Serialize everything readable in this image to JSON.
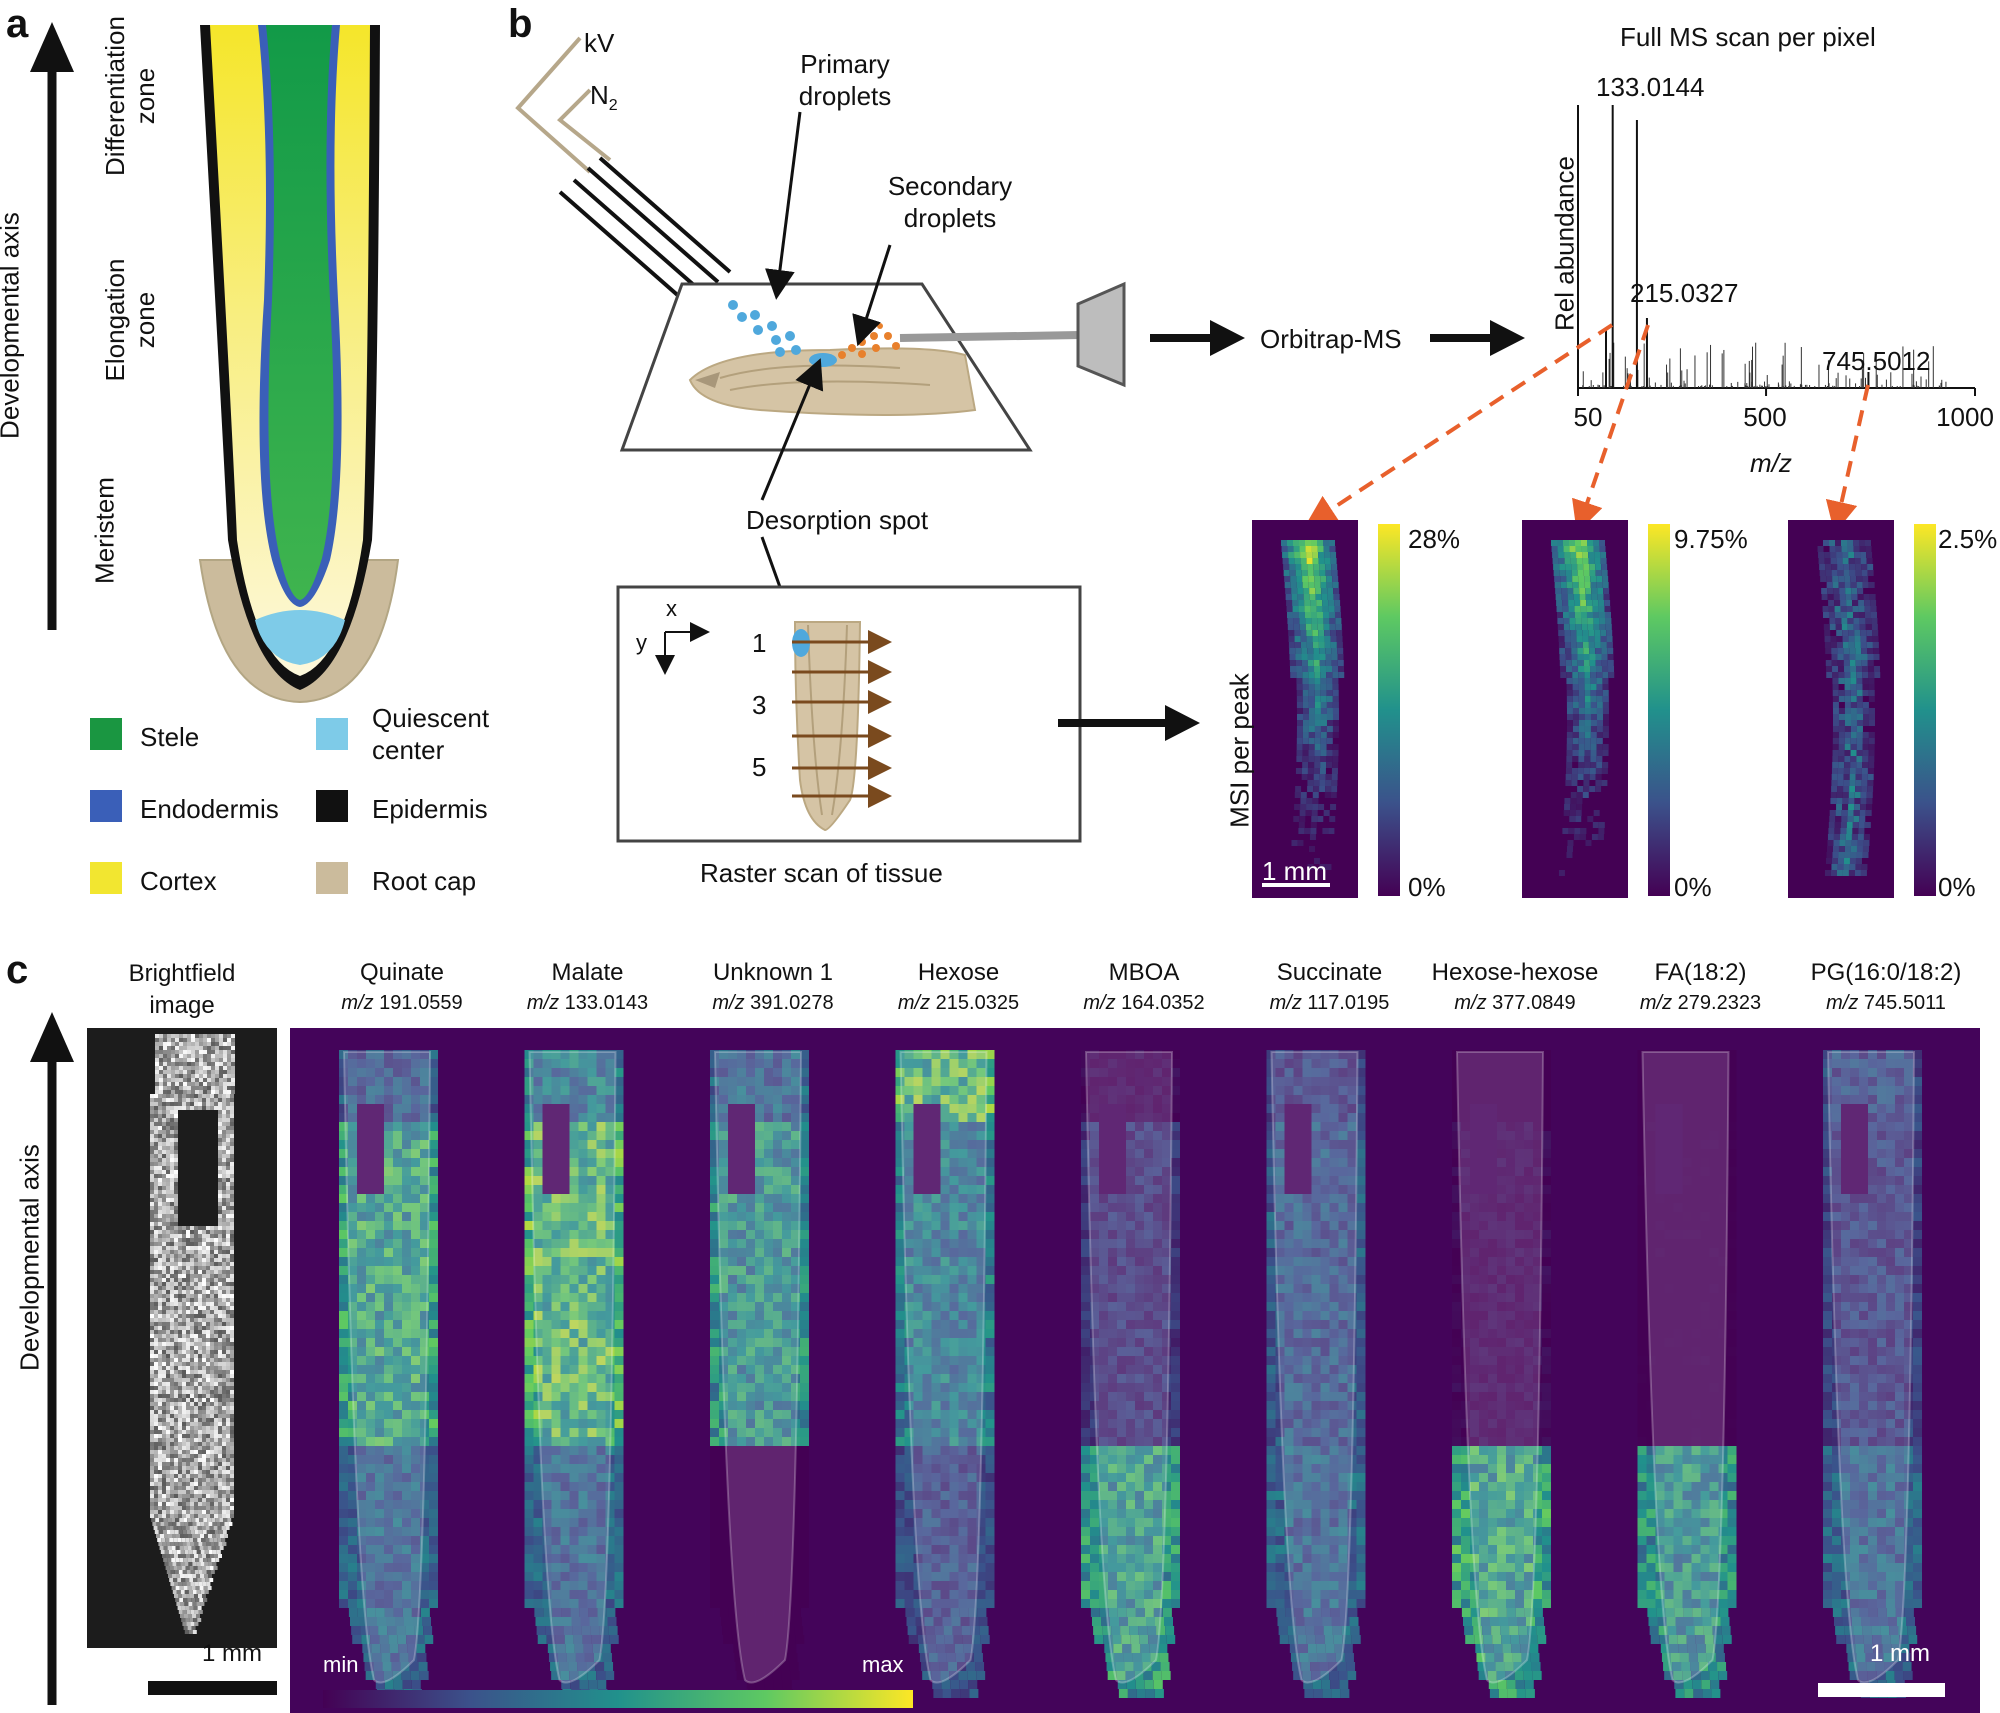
{
  "panel_a": {
    "letter": "a",
    "axis_label": "Developmental axis",
    "zones": [
      "Differentiation zone",
      "Elongation zone",
      "Meristem"
    ],
    "zone_lines": [
      [
        "Differentiation",
        "zone"
      ],
      [
        "Elongation",
        "zone"
      ],
      [
        "Meristem"
      ]
    ],
    "legend": [
      {
        "label": "Stele",
        "color": "#1a9641"
      },
      {
        "label": "Endodermis",
        "color": "#3a5fb8"
      },
      {
        "label": "Cortex",
        "color": "#f2e630"
      },
      {
        "label": "Quiescent center",
        "lines": [
          "Quiescent",
          "center"
        ],
        "color": "#7ecbe8"
      },
      {
        "label": "Epidermis",
        "color": "#111111"
      },
      {
        "label": "Root cap",
        "color": "#cbbb9c"
      }
    ]
  },
  "panel_b": {
    "letter": "b",
    "kv_label": "kV",
    "n2_label": "N",
    "n2_sub": "2",
    "primary_droplets": [
      "Primary",
      "droplets"
    ],
    "secondary_droplets": [
      "Secondary",
      "droplets"
    ],
    "desorption_spot": "Desorption spot",
    "raster_label": "Raster scan of tissue",
    "raster_axes": {
      "x": "x",
      "y": "y"
    },
    "raster_rows": [
      "1",
      "3",
      "5"
    ],
    "orbitrap": "Orbitrap-MS",
    "spectrum_title": "Full MS scan per pixel",
    "spectrum_ylabel": "Rel abundance",
    "spectrum_xlabel": "m/z",
    "spectrum_ticks": [
      "50",
      "500",
      "1000"
    ],
    "spectrum_peaks": [
      "133.0144",
      "215.0327",
      "745.5012"
    ],
    "msi_label": "MSI per peak",
    "scalebar": "1 mm",
    "msi_maps": [
      {
        "max": "28%",
        "min": "0%"
      },
      {
        "max": "9.75%",
        "min": "0%"
      },
      {
        "max": "2.5%",
        "min": "0%"
      }
    ]
  },
  "panel_c": {
    "letter": "c",
    "axis_label": "Developmental axis",
    "brightfield": [
      "Brightfield",
      "image"
    ],
    "scalebar_left": "1 mm",
    "scalebar_right": "1 mm",
    "colorbar_min": "min",
    "colorbar_max": "max",
    "metabolites": [
      {
        "name": "Quinate",
        "mz": "191.0559"
      },
      {
        "name": "Malate",
        "mz": "133.0143"
      },
      {
        "name": "Unknown 1",
        "mz": "391.0278"
      },
      {
        "name": "Hexose",
        "mz": "215.0325"
      },
      {
        "name": "MBOA",
        "mz": "164.0352"
      },
      {
        "name": "Succinate",
        "mz": "117.0195"
      },
      {
        "name": "Hexose-hexose",
        "mz": "377.0849"
      },
      {
        "name": "FA(18:2)",
        "mz": "279.2323"
      },
      {
        "name": "PG(16:0/18:2)",
        "mz": "745.5011"
      }
    ],
    "mz_prefix": "m/z"
  }
}
